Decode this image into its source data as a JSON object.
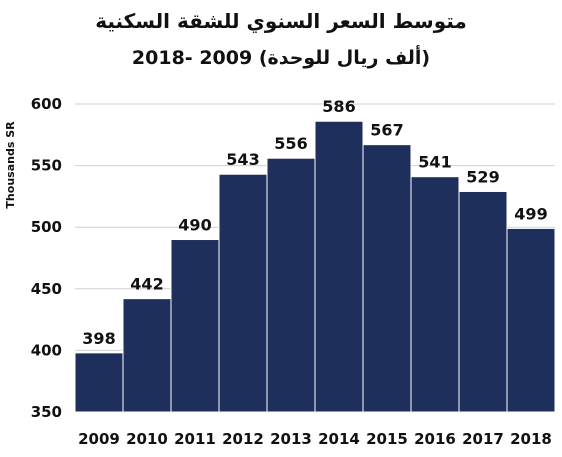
{
  "chart_data": {
    "type": "bar",
    "title": "متوسط السعر السنوي للشقة السكنية",
    "subtitle": "(ألف ريال للوحدة)  2009 -2018",
    "xlabel": "",
    "ylabel": "Thousands SR",
    "categories": [
      "2009",
      "2010",
      "2011",
      "2012",
      "2013",
      "2014",
      "2015",
      "2016",
      "2017",
      "2018"
    ],
    "values": [
      398,
      442,
      490,
      543,
      556,
      586,
      567,
      541,
      529,
      499
    ],
    "ylim": [
      350,
      600
    ],
    "yticks": [
      350,
      400,
      450,
      500,
      550,
      600
    ],
    "grid": true,
    "bar_color": "#1f2f5c",
    "grid_color": "#d0d0d0"
  }
}
